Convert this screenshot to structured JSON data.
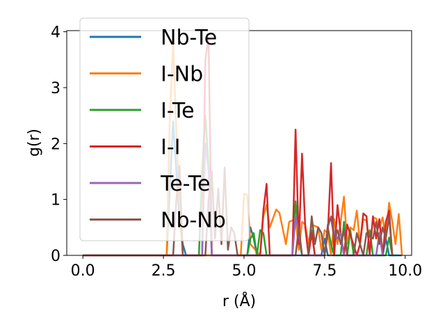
{
  "chart_data": {
    "type": "line",
    "xlabel": "r (Å)",
    "ylabel": "g(r)",
    "xlim": [
      -0.5,
      10.2
    ],
    "ylim": [
      0,
      4.02
    ],
    "x_ticks": [
      0.0,
      2.5,
      5.0,
      7.5,
      10.0
    ],
    "x_tick_labels": [
      "0.0",
      "2.5",
      "5.0",
      "7.5",
      "10.0"
    ],
    "y_ticks": [
      0,
      1,
      2,
      3,
      4
    ],
    "y_tick_labels": [
      "0",
      "1",
      "2",
      "3",
      "4"
    ],
    "legend_position": "upper-left",
    "grid": false,
    "series": [
      {
        "name": "Nb-Te",
        "color": "#1f77b4",
        "x": [
          0.0,
          2.6,
          2.7,
          2.8,
          2.9,
          3.0,
          3.1,
          3.2,
          5.1,
          5.2,
          5.3,
          5.4,
          5.5,
          7.4,
          7.5,
          7.6,
          9.3,
          9.4,
          9.5,
          9.9
        ],
        "y": [
          0,
          0,
          1.2,
          2.4,
          1.5,
          0.6,
          0.2,
          0,
          0,
          0.5,
          0.3,
          0,
          0,
          0,
          0.3,
          0,
          0,
          0.3,
          0,
          0
        ]
      },
      {
        "name": "I-Nb",
        "color": "#ff7f0e",
        "x": [
          0.0,
          2.6,
          2.7,
          2.8,
          2.9,
          3.0,
          3.1,
          4.9,
          5.0,
          5.1,
          5.2,
          5.5,
          5.6,
          5.7,
          5.8,
          6.0,
          6.1,
          6.3,
          6.4,
          6.6,
          6.7,
          6.8,
          6.9,
          7.0,
          7.1,
          7.3,
          7.4,
          7.5,
          7.6,
          7.7,
          7.8,
          7.9,
          8.0,
          8.1,
          8.2,
          8.3,
          8.4,
          8.5,
          8.6,
          8.7,
          8.8,
          8.9,
          9.0,
          9.1,
          9.2,
          9.3,
          9.4,
          9.5,
          9.6,
          9.7,
          9.8,
          9.9
        ],
        "y": [
          0,
          0,
          2.5,
          3.8,
          2.2,
          0.9,
          0,
          0,
          1.1,
          1.08,
          0.2,
          0,
          0.7,
          0.9,
          0.5,
          0.82,
          0.76,
          0.2,
          0.6,
          0.65,
          0.1,
          0.6,
          0.55,
          0.2,
          0.55,
          0.5,
          0.1,
          0.45,
          0.4,
          0,
          0.65,
          0.2,
          0.6,
          1.05,
          0.2,
          0.5,
          0.45,
          0.8,
          0.2,
          0.65,
          0.62,
          0.1,
          0.68,
          0.66,
          0.5,
          0.68,
          0.3,
          0.94,
          0.6,
          0.2,
          0.74,
          0
        ]
      },
      {
        "name": "I-Te",
        "color": "#2ca02c",
        "x": [
          0.0,
          3.6,
          3.7,
          3.8,
          3.9,
          4.0,
          5.1,
          5.2,
          5.3,
          5.4,
          5.5,
          5.6,
          5.7,
          6.5,
          6.6,
          6.7,
          6.8,
          7.0,
          7.1,
          7.2,
          7.5,
          7.6,
          7.7,
          7.8,
          8.0,
          8.1,
          8.2,
          8.3,
          8.4,
          8.8,
          8.9,
          9.0,
          9.4,
          9.5,
          9.6,
          9.7
        ],
        "y": [
          0,
          0,
          1.5,
          2.5,
          1.6,
          0,
          0,
          0.3,
          0.4,
          0,
          0.45,
          0.4,
          0,
          0,
          0.97,
          0.3,
          0,
          0,
          0.45,
          0,
          0,
          0.5,
          0.2,
          0,
          0,
          0.6,
          0,
          0.45,
          0,
          0,
          0.45,
          0,
          0,
          0.32,
          0,
          0
        ]
      },
      {
        "name": "I-I",
        "color": "#d62728",
        "x": [
          0.0,
          3.7,
          3.8,
          3.9,
          4.0,
          5.5,
          5.6,
          5.7,
          5.8,
          6.5,
          6.6,
          6.7,
          6.8,
          6.9,
          7.0,
          7.1,
          7.2,
          7.5,
          7.6,
          7.7,
          7.8,
          7.9,
          8.0,
          8.1,
          8.2,
          8.5,
          8.6,
          8.7,
          8.8,
          8.9,
          9.0,
          9.1,
          9.2,
          9.3,
          9.4,
          9.5,
          9.6
        ],
        "y": [
          0,
          0,
          3.5,
          3.9,
          0,
          0,
          0.8,
          1.28,
          0,
          0,
          2.25,
          0.2,
          1.82,
          0.5,
          0,
          0.4,
          0,
          0,
          0.4,
          1.65,
          0,
          0.9,
          0.4,
          0,
          0.55,
          0,
          0.2,
          0.75,
          0.7,
          0,
          0.7,
          0.3,
          0.65,
          0,
          0.6,
          0.8,
          0
        ]
      },
      {
        "name": "Te-Te",
        "color": "#9467bd",
        "x": [
          0.0,
          3.7,
          3.8,
          3.9,
          4.0,
          6.5,
          6.6,
          6.7,
          6.8,
          7.5,
          7.6,
          7.7,
          7.8,
          7.9,
          8.0,
          8.1,
          8.2,
          9.1,
          9.2,
          9.3
        ],
        "y": [
          0,
          0,
          2.0,
          1.5,
          0,
          0,
          0.7,
          0.4,
          0,
          0,
          0.5,
          0.7,
          0.4,
          0.3,
          0.4,
          0,
          0,
          0,
          0.4,
          0
        ]
      },
      {
        "name": "Nb-Nb",
        "color": "#8c564b",
        "x": [
          0.0,
          2.8,
          2.9,
          3.0,
          3.1,
          3.8,
          3.9,
          4.0,
          4.1,
          4.2,
          4.3,
          4.4,
          4.5,
          4.6,
          4.7,
          4.8,
          6.6,
          6.7,
          6.8,
          7.0,
          7.1,
          7.2,
          7.3,
          7.4,
          7.5,
          7.6,
          7.7,
          7.8,
          7.9,
          8.0,
          8.1,
          8.2,
          8.4,
          8.5,
          8.6,
          8.7,
          8.8,
          9.0,
          9.1,
          9.2,
          9.3,
          9.4,
          9.5,
          9.6
        ],
        "y": [
          0,
          0,
          1.0,
          1.6,
          0,
          0,
          1.0,
          1.5,
          0.3,
          1.2,
          0.2,
          1.57,
          0.1,
          0.5,
          0.4,
          0,
          0,
          0.5,
          0,
          0,
          0.7,
          0.2,
          0.5,
          0.4,
          0,
          0.55,
          0.68,
          0.3,
          0.45,
          0.2,
          0.45,
          0,
          0,
          0.4,
          0.2,
          0,
          0.4,
          0.3,
          0.6,
          0.2,
          0.5,
          0.3,
          0.7,
          0
        ]
      }
    ]
  }
}
